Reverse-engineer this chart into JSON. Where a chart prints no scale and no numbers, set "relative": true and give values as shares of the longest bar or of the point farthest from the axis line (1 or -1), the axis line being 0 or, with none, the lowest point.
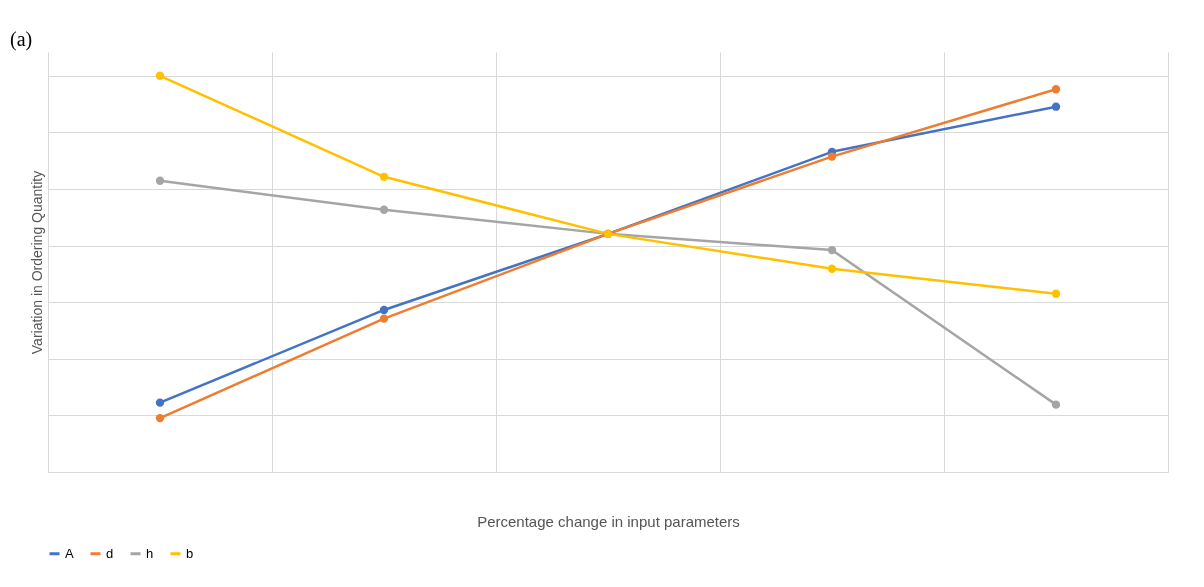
{
  "chart_data": {
    "type": "line",
    "relative": true,
    "xlabel": "Percentage change in input parameters",
    "ylabel": "Variation in Ordering Quantity",
    "annotations": [
      "(a)"
    ],
    "categories": [
      null,
      null,
      null,
      null,
      null
    ],
    "series": [
      {
        "name": "A",
        "color": "#4472c4",
        "values": [
          0.175,
          0.409,
          0.601,
          0.808,
          0.922
        ]
      },
      {
        "name": "d",
        "color": "#ed7d31",
        "values": [
          0.136,
          0.387,
          0.601,
          0.796,
          0.966
        ]
      },
      {
        "name": "h",
        "color": "#a5a5a5",
        "values": [
          0.735,
          0.662,
          0.601,
          0.56,
          0.17
        ]
      },
      {
        "name": "b",
        "color": "#ffc000",
        "values": [
          1,
          0.745,
          0.601,
          0.513,
          0.45
        ]
      }
    ],
    "grid": true,
    "legend": "bottom",
    "marker": "circle",
    "line_style": "solid"
  }
}
